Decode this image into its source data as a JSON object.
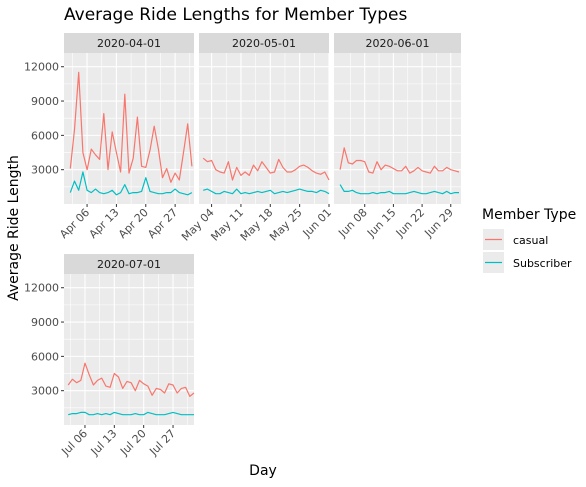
{
  "chart_data": {
    "type": "line",
    "title": "Average Ride Lengths for Member Types",
    "xlabel": "Day",
    "ylabel": "Average Ride Length",
    "ylim": [
      0,
      13200
    ],
    "yticks": [
      3000,
      6000,
      9000,
      12000
    ],
    "ytick_labels": [
      "3000",
      "6000",
      "9000",
      "12000"
    ],
    "grid": true,
    "legend": {
      "title": "Member Type",
      "position": "right",
      "entries": [
        {
          "name": "casual",
          "color": "#F8766D"
        },
        {
          "name": "Subscriber",
          "color": "#00BFC4"
        }
      ]
    },
    "panels": [
      {
        "strip": "2020-04-01",
        "xticks": [
          5,
          12,
          19,
          26
        ],
        "xtick_labels": [
          "Apr 06",
          "Apr 13",
          "Apr 20",
          "Apr 27"
        ],
        "xlim": [
          -0.5,
          30.5
        ],
        "series": [
          {
            "name": "casual",
            "x": [
              1,
              2,
              3,
              4,
              5,
              6,
              7,
              8,
              9,
              10,
              11,
              12,
              13,
              14,
              15,
              16,
              17,
              18,
              19,
              20,
              21,
              22,
              23,
              24,
              25,
              26,
              27,
              28,
              29,
              30
            ],
            "values": [
              3100,
              6500,
              11500,
              4500,
              3000,
              4800,
              4300,
              3900,
              7900,
              3000,
              6300,
              4500,
              2800,
              9600,
              2700,
              4000,
              7600,
              3300,
              3200,
              4700,
              6800,
              4800,
              2300,
              3100,
              1900,
              2700,
              2100,
              4500,
              7000,
              3300
            ]
          },
          {
            "name": "Subscriber",
            "x": [
              1,
              2,
              3,
              4,
              5,
              6,
              7,
              8,
              9,
              10,
              11,
              12,
              13,
              14,
              15,
              16,
              17,
              18,
              19,
              20,
              21,
              22,
              23,
              24,
              25,
              26,
              27,
              28,
              29,
              30
            ],
            "values": [
              1000,
              2000,
              1200,
              2800,
              1200,
              1000,
              1300,
              1000,
              900,
              1000,
              1200,
              800,
              1000,
              1700,
              900,
              1000,
              1000,
              1100,
              2300,
              1100,
              1000,
              900,
              900,
              1000,
              1000,
              1300,
              1000,
              900,
              800,
              1000
            ]
          }
        ]
      },
      {
        "strip": "2020-05-01",
        "xticks": [
          3,
          10,
          17,
          24,
          31
        ],
        "xtick_labels": [
          "May 04",
          "May 11",
          "May 18",
          "May 25",
          "Jun 01"
        ],
        "xlim": [
          0,
          31
        ],
        "series": [
          {
            "name": "casual",
            "x": [
              1,
              2,
              3,
              4,
              5,
              6,
              7,
              8,
              9,
              10,
              11,
              12,
              13,
              14,
              15,
              16,
              17,
              18,
              19,
              20,
              21,
              22,
              23,
              24,
              25,
              26,
              27,
              28,
              29,
              30,
              31
            ],
            "values": [
              4000,
              3700,
              3800,
              3000,
              2800,
              2700,
              3700,
              2100,
              3200,
              2500,
              2800,
              2500,
              3400,
              2900,
              3700,
              3200,
              2700,
              2800,
              3900,
              3200,
              2800,
              2800,
              3000,
              3300,
              3400,
              3200,
              2900,
              2700,
              2600,
              2800,
              2100
            ]
          },
          {
            "name": "Subscriber",
            "x": [
              1,
              2,
              3,
              4,
              5,
              6,
              7,
              8,
              9,
              10,
              11,
              12,
              13,
              14,
              15,
              16,
              17,
              18,
              19,
              20,
              21,
              22,
              23,
              24,
              25,
              26,
              27,
              28,
              29,
              30,
              31
            ],
            "values": [
              1200,
              1300,
              1100,
              900,
              900,
              1100,
              1000,
              900,
              1300,
              900,
              1000,
              900,
              1000,
              1100,
              1000,
              1100,
              1200,
              900,
              1000,
              1100,
              1000,
              1100,
              1200,
              1300,
              1200,
              1100,
              1100,
              1000,
              1200,
              1100,
              900
            ]
          }
        ]
      },
      {
        "strip": "2020-06-01",
        "xticks": [
          7,
          14,
          21,
          28
        ],
        "xtick_labels": [
          "Jun 08",
          "Jun 15",
          "Jun 22",
          "Jun 29"
        ],
        "xlim": [
          -0.5,
          30.5
        ],
        "series": [
          {
            "name": "casual",
            "x": [
              1,
              2,
              3,
              4,
              5,
              6,
              7,
              8,
              9,
              10,
              11,
              12,
              13,
              14,
              15,
              16,
              17,
              18,
              19,
              20,
              21,
              22,
              23,
              24,
              25,
              26,
              27,
              28,
              29,
              30
            ],
            "values": [
              3000,
              4900,
              3600,
              3500,
              3800,
              3800,
              3700,
              2800,
              2700,
              3700,
              3000,
              3400,
              3300,
              3100,
              2900,
              2900,
              3300,
              2700,
              2900,
              3200,
              2900,
              2800,
              2700,
              3300,
              2900,
              2900,
              3200,
              3000,
              2900,
              2800
            ]
          },
          {
            "name": "Subscriber",
            "x": [
              1,
              2,
              3,
              4,
              5,
              6,
              7,
              8,
              9,
              10,
              11,
              12,
              13,
              14,
              15,
              16,
              17,
              18,
              19,
              20,
              21,
              22,
              23,
              24,
              25,
              26,
              27,
              28,
              29,
              30
            ],
            "values": [
              1700,
              1100,
              1100,
              1200,
              1000,
              900,
              900,
              900,
              1000,
              900,
              1000,
              1000,
              1100,
              900,
              900,
              900,
              900,
              1000,
              1100,
              1000,
              900,
              900,
              1000,
              1100,
              1000,
              900,
              1100,
              900,
              1000,
              1000
            ]
          }
        ]
      },
      {
        "strip": "2020-07-01",
        "xticks": [
          5,
          12,
          19,
          26
        ],
        "xtick_labels": [
          "Jul 06",
          "Jul 13",
          "Jul 20",
          "Jul 27"
        ],
        "xlim": [
          0,
          31
        ],
        "series": [
          {
            "name": "casual",
            "x": [
              1,
              2,
              3,
              4,
              5,
              6,
              7,
              8,
              9,
              10,
              11,
              12,
              13,
              14,
              15,
              16,
              17,
              18,
              19,
              20,
              21,
              22,
              23,
              24,
              25,
              26,
              27,
              28,
              29,
              30,
              31
            ],
            "values": [
              3500,
              4000,
              3700,
              3900,
              5400,
              4400,
              3500,
              3900,
              4100,
              3400,
              3300,
              4500,
              4200,
              3200,
              3800,
              3700,
              3000,
              3900,
              3600,
              3400,
              2600,
              3200,
              3100,
              2800,
              3600,
              3500,
              2800,
              3200,
              3300,
              2500,
              2800
            ]
          },
          {
            "name": "Subscriber",
            "x": [
              1,
              2,
              3,
              4,
              5,
              6,
              7,
              8,
              9,
              10,
              11,
              12,
              13,
              14,
              15,
              16,
              17,
              18,
              19,
              20,
              21,
              22,
              23,
              24,
              25,
              26,
              27,
              28,
              29,
              30,
              31
            ],
            "values": [
              900,
              1000,
              1000,
              1100,
              1100,
              900,
              900,
              1000,
              900,
              1000,
              900,
              1100,
              1000,
              900,
              900,
              900,
              1000,
              900,
              900,
              1100,
              1000,
              900,
              900,
              900,
              1000,
              1100,
              1000,
              900,
              900,
              900,
              900
            ]
          }
        ]
      }
    ]
  }
}
